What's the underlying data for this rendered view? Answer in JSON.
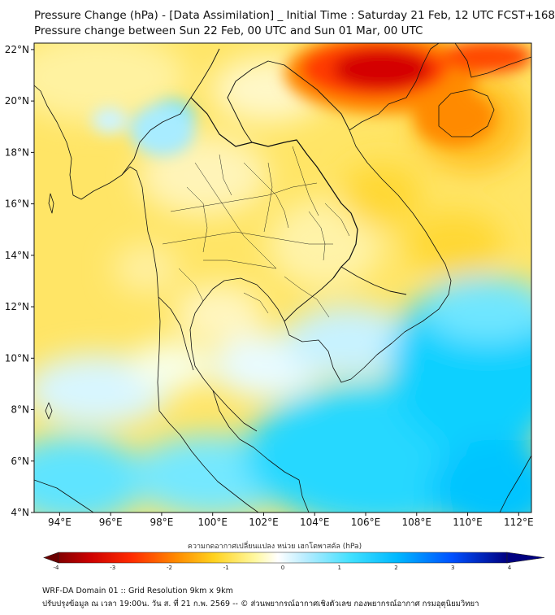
{
  "header": {
    "title_line1": "Pressure Change (hPa) - [Data Assimilation] _ Initial Time : Saturday 21 Feb, 12 UTC FCST+168",
    "title_line2": "Pressure change between Sun 22 Feb, 00 UTC and Sun 01 Mar, 00 UTC"
  },
  "map": {
    "lon_range": [
      93,
      112.5
    ],
    "lat_range": [
      4,
      22.25
    ],
    "lon_ticks": [
      "94°E",
      "96°E",
      "98°E",
      "100°E",
      "102°E",
      "104°E",
      "106°E",
      "108°E",
      "110°E",
      "112°E"
    ],
    "lat_ticks": [
      "22°N",
      "20°N",
      "18°N",
      "16°N",
      "14°N",
      "12°N",
      "10°N",
      "8°N",
      "6°N",
      "4°N"
    ],
    "field_colors": {
      "strong_rise": "#cc0000",
      "rise": "#ff8c00",
      "slight_rise": "#ffd21f",
      "near_zero": "#fff8a0",
      "slight_fall": "#b8ecff",
      "fall": "#00d8ff"
    }
  },
  "colorbar": {
    "title": "ความกดอากาศเปลี่ยนแปลง หน่วย เฮกโตพาสคัล (hPa)",
    "min": -4,
    "max": 4,
    "tick_labels": [
      "-4",
      "-3",
      "-2",
      "-1",
      "0",
      "1",
      "2",
      "3",
      "4"
    ],
    "colors": [
      "#6b0000",
      "#cc0000",
      "#ff2a00",
      "#ff8c00",
      "#ffd21f",
      "#fff8a0",
      "#ffffff",
      "#b8ecff",
      "#40e0ff",
      "#00b8ff",
      "#0050ff",
      "#000080"
    ]
  },
  "footer": {
    "line1": "WRF-DA Domain 01 :: Grid Resolution 9km x 9km",
    "line2": "ปรับปรุงข้อมูล ณ เวลา 19:00น. วัน ส. ที่ 21 ก.พ. 2569 -- © ส่วนพยากรณ์อากาศเชิงตัวเลข กองพยากรณ์อากาศ กรมอุตุนิยมวิทยา"
  }
}
